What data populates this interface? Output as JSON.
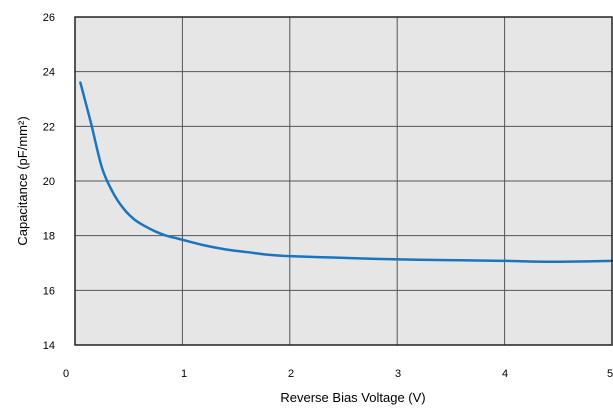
{
  "chart_data": {
    "type": "line",
    "title": "",
    "xlabel": "Reverse Bias Voltage (V)",
    "ylabel": "Capacitance (pF/mm²)",
    "xlim": [
      0,
      5
    ],
    "ylim": [
      14,
      26
    ],
    "x_ticks": [
      "0",
      "1",
      "2",
      "3",
      "4",
      "5"
    ],
    "y_ticks": [
      "14",
      "16",
      "18",
      "20",
      "22",
      "24",
      "26"
    ],
    "grid": true,
    "colors": {
      "line": "#1a75c0",
      "plot_background": "#e6e6e6",
      "grid": "#555555"
    },
    "series": [
      {
        "x": [
          0.05,
          0.15,
          0.25,
          0.35,
          0.45,
          0.55,
          0.65,
          0.75,
          0.85,
          0.95,
          1.0,
          1.2,
          1.4,
          1.6,
          1.8,
          2.0,
          2.4,
          2.8,
          3.2,
          3.6,
          4.0,
          4.3,
          4.6,
          5.0
        ],
        "values": [
          23.6,
          22.1,
          20.5,
          19.6,
          19.0,
          18.6,
          18.35,
          18.15,
          18.0,
          17.9,
          17.85,
          17.65,
          17.5,
          17.4,
          17.3,
          17.25,
          17.2,
          17.15,
          17.12,
          17.1,
          17.08,
          17.05,
          17.05,
          17.08
        ]
      }
    ]
  }
}
